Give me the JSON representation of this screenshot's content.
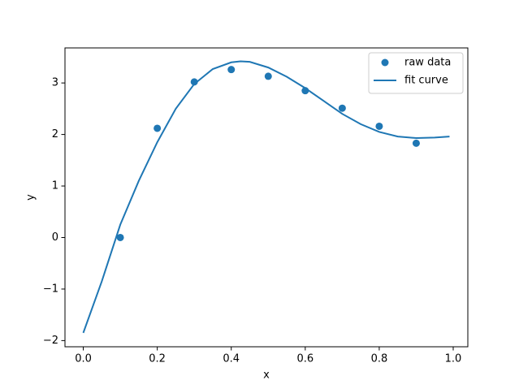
{
  "chart_data": {
    "type": "line",
    "xlabel": "x",
    "ylabel": "y",
    "xlim": [
      -0.0495,
      1.0395
    ],
    "xticks": [
      {
        "value": 0.0,
        "label": "0.0"
      },
      0.2,
      0.4,
      0.6,
      0.8,
      {
        "value": 1.0,
        "label": "1.0"
      }
    ],
    "ylim": [
      -2.12,
      3.68
    ],
    "yticks": [
      {
        "value": -2,
        "label": "−2"
      },
      {
        "value": -1,
        "label": "−1"
      },
      0,
      1,
      2,
      3
    ],
    "legend": "upper right",
    "series": [
      {
        "name": "raw data",
        "mode": "markers",
        "color": "#1f77b4",
        "x": [
          0.1,
          0.2,
          0.3,
          0.4,
          0.5,
          0.6,
          0.7,
          0.8,
          0.9
        ],
        "values": [
          0.0,
          2.12,
          3.02,
          3.26,
          3.13,
          2.85,
          2.51,
          2.16,
          1.83
        ]
      },
      {
        "name": "fit curve",
        "mode": "line",
        "color": "#1f77b4",
        "x": [
          0,
          0.05,
          0.1,
          0.15,
          0.2,
          0.25,
          0.3,
          0.35,
          0.4,
          0.425,
          0.45,
          0.5,
          0.55,
          0.6,
          0.65,
          0.7,
          0.75,
          0.8,
          0.85,
          0.9,
          0.95,
          0.99
        ],
        "values": [
          -1.85,
          -0.85,
          0.25,
          1.1,
          1.85,
          2.5,
          2.98,
          3.27,
          3.4,
          3.42,
          3.41,
          3.3,
          3.12,
          2.9,
          2.65,
          2.4,
          2.2,
          2.05,
          1.96,
          1.93,
          1.94,
          1.96
        ]
      }
    ]
  }
}
